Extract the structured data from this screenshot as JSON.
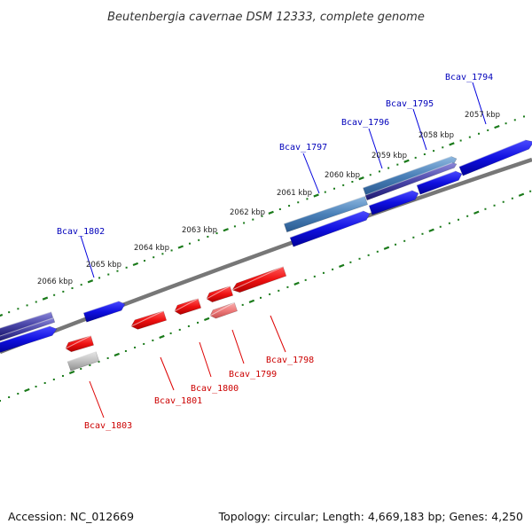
{
  "title": "Beutenbergia cavernae DSM 12333, complete genome",
  "footer": {
    "accession": "Accession: NC_012669",
    "summary": "Topology: circular; Length: 4,669,183 bp; Genes: 4,250"
  },
  "colors": {
    "forward_gene": "#1010e0",
    "reverse_gene": "#ee1111",
    "label_forward": "#0000bb",
    "label_reverse": "#cc0000",
    "tick": "#1a7a1a",
    "backbone": "#777777"
  },
  "scale_labels": [
    "2057 kbp",
    "2058 kbp",
    "2059 kbp",
    "2060 kbp",
    "2061 kbp",
    "2062 kbp",
    "2063 kbp",
    "2064 kbp",
    "2065 kbp",
    "2066 kbp"
  ],
  "gene_labels": [
    {
      "text": "Bcav_1794",
      "strand": "forward"
    },
    {
      "text": "Bcav_1795",
      "strand": "forward"
    },
    {
      "text": "Bcav_1796",
      "strand": "forward"
    },
    {
      "text": "Bcav_1797",
      "strand": "forward"
    },
    {
      "text": "Bcav_1802",
      "strand": "forward"
    },
    {
      "text": "Bcav_1798",
      "strand": "reverse"
    },
    {
      "text": "Bcav_1799",
      "strand": "reverse"
    },
    {
      "text": "Bcav_1800",
      "strand": "reverse"
    },
    {
      "text": "Bcav_1801",
      "strand": "reverse"
    },
    {
      "text": "Bcav_1803",
      "strand": "reverse"
    }
  ]
}
